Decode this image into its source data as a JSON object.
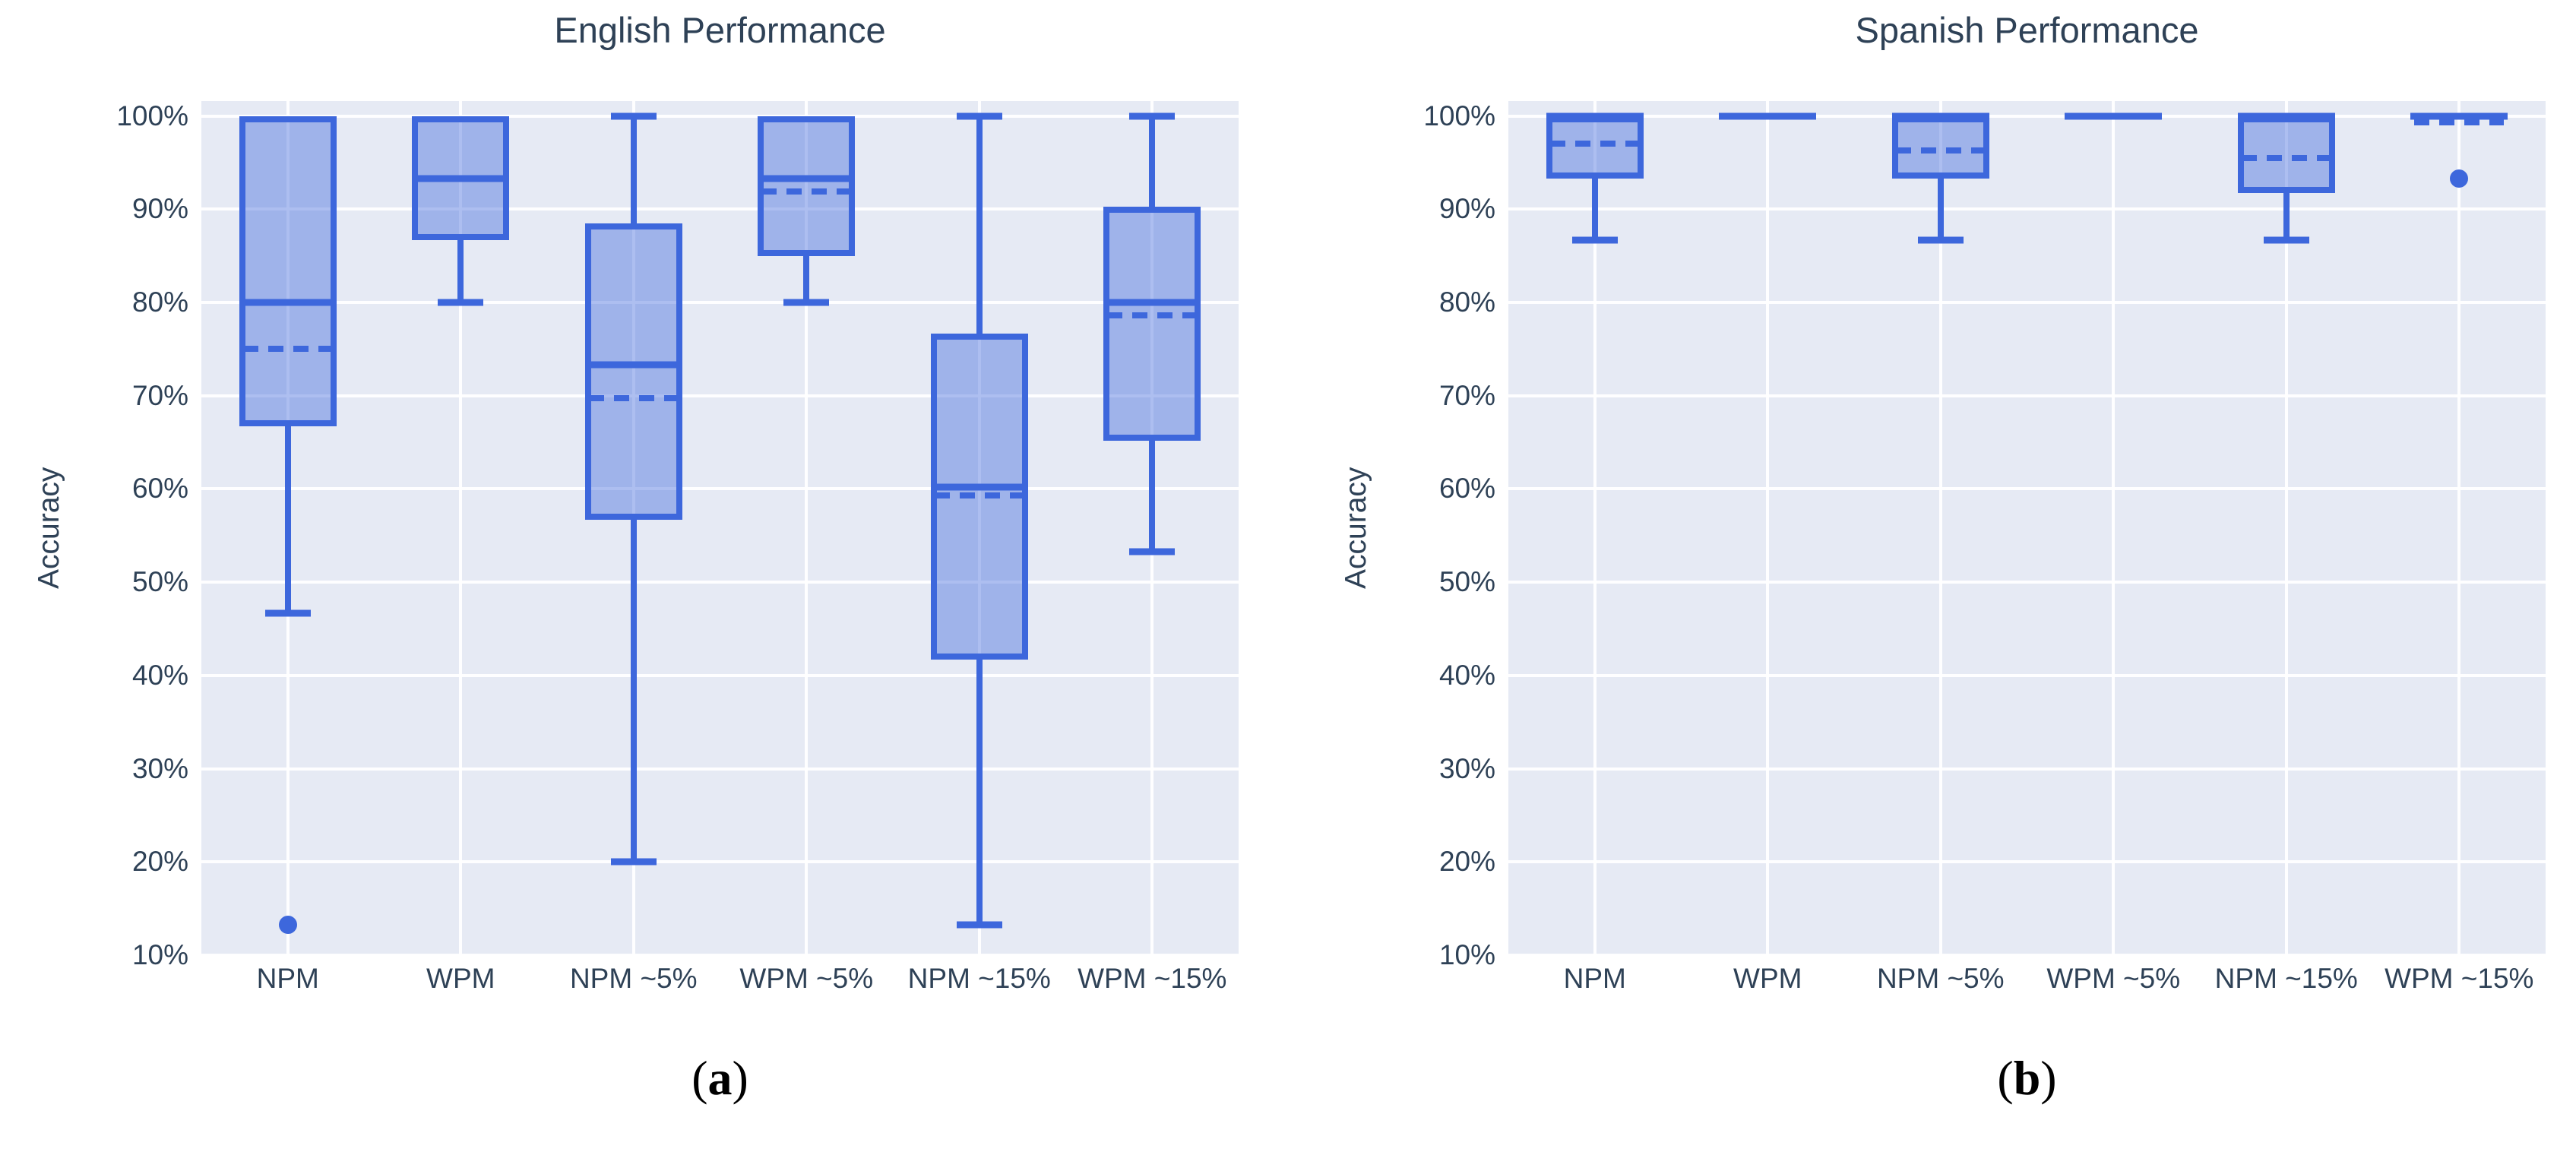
{
  "figure": {
    "background": "#ffffff",
    "plot_background": "#e6eaf4",
    "gridline_color": "#ffffff",
    "box_edge_color": "#3d67dc",
    "box_fill_color": "rgba(61,103,220,0.42)",
    "text_color": "#2e4156",
    "caption_color": "#000000"
  },
  "chart_data": [
    {
      "type": "box",
      "title": "English Performance",
      "ylabel": "Accuracy",
      "caption": {
        "open": "(",
        "letter": "a",
        "close": ")"
      },
      "ylim": [
        10,
        101.6
      ],
      "grid": true,
      "legend": "none",
      "y_ticks": [
        {
          "value": 100,
          "label": "100%"
        },
        {
          "value": 90,
          "label": "90%"
        },
        {
          "value": 80,
          "label": "80%"
        },
        {
          "value": 70,
          "label": "70%"
        },
        {
          "value": 60,
          "label": "60%"
        },
        {
          "value": 50,
          "label": "50%"
        },
        {
          "value": 40,
          "label": "40%"
        },
        {
          "value": 30,
          "label": "30%"
        },
        {
          "value": 20,
          "label": "20%"
        },
        {
          "value": 10,
          "label": "10%"
        }
      ],
      "categories": [
        "NPM",
        "WPM",
        "NPM ~5%",
        "WPM ~5%",
        "NPM ~15%",
        "WPM ~15%"
      ],
      "boxes": [
        {
          "category": "NPM",
          "whisker_low": 46.7,
          "q1": 66.7,
          "median": 80.0,
          "mean": 75.0,
          "q3": 100,
          "whisker_high": 100,
          "outliers": [
            13.3
          ]
        },
        {
          "category": "WPM",
          "whisker_low": 80.0,
          "q1": 86.7,
          "median": 93.3,
          "mean": 93.3,
          "q3": 100,
          "whisker_high": 100,
          "outliers": []
        },
        {
          "category": "NPM ~5%",
          "whisker_low": 20.0,
          "q1": 56.7,
          "median": 73.3,
          "mean": 69.7,
          "q3": 88.5,
          "whisker_high": 100,
          "outliers": []
        },
        {
          "category": "WPM ~5%",
          "whisker_low": 80.0,
          "q1": 85.0,
          "median": 93.3,
          "mean": 91.9,
          "q3": 100,
          "whisker_high": 100,
          "outliers": []
        },
        {
          "category": "NPM ~15%",
          "whisker_low": 13.3,
          "q1": 41.7,
          "median": 60.2,
          "mean": 59.3,
          "q3": 76.7,
          "whisker_high": 100,
          "outliers": []
        },
        {
          "category": "WPM ~15%",
          "whisker_low": 53.3,
          "q1": 65.2,
          "median": 80.0,
          "mean": 78.6,
          "q3": 90.3,
          "whisker_high": 100,
          "outliers": []
        }
      ]
    },
    {
      "type": "box",
      "title": "Spanish Performance",
      "ylabel": "Accuracy",
      "caption": {
        "open": "(",
        "letter": "b",
        "close": ")"
      },
      "ylim": [
        10,
        101.6
      ],
      "grid": true,
      "legend": "none",
      "y_ticks": [
        {
          "value": 100,
          "label": "100%"
        },
        {
          "value": 90,
          "label": "90%"
        },
        {
          "value": 80,
          "label": "80%"
        },
        {
          "value": 70,
          "label": "70%"
        },
        {
          "value": 60,
          "label": "60%"
        },
        {
          "value": 50,
          "label": "50%"
        },
        {
          "value": 40,
          "label": "40%"
        },
        {
          "value": 30,
          "label": "30%"
        },
        {
          "value": 20,
          "label": "20%"
        },
        {
          "value": 10,
          "label": "10%"
        }
      ],
      "categories": [
        "NPM",
        "WPM",
        "NPM ~5%",
        "WPM ~5%",
        "NPM ~15%",
        "WPM ~15%"
      ],
      "boxes": [
        {
          "category": "NPM",
          "whisker_low": 86.7,
          "q1": 93.3,
          "median": 100,
          "mean": 97.0,
          "q3": 100,
          "whisker_high": 100,
          "outliers": []
        },
        {
          "category": "WPM",
          "whisker_low": 100,
          "q1": 100,
          "median": 100,
          "mean": 100,
          "q3": 100,
          "whisker_high": 100,
          "outliers": []
        },
        {
          "category": "NPM ~5%",
          "whisker_low": 86.7,
          "q1": 93.3,
          "median": 100,
          "mean": 96.3,
          "q3": 100,
          "whisker_high": 100,
          "outliers": []
        },
        {
          "category": "WPM ~5%",
          "whisker_low": 100,
          "q1": 100,
          "median": 100,
          "mean": 100,
          "q3": 100,
          "whisker_high": 100,
          "outliers": []
        },
        {
          "category": "NPM ~15%",
          "whisker_low": 86.7,
          "q1": 91.7,
          "median": 100,
          "mean": 95.5,
          "q3": 100,
          "whisker_high": 100,
          "outliers": []
        },
        {
          "category": "WPM ~15%",
          "whisker_low": 100,
          "q1": 100,
          "median": 100,
          "mean": 99.3,
          "q3": 100,
          "whisker_high": 100,
          "outliers": [
            93.3
          ]
        }
      ]
    }
  ]
}
